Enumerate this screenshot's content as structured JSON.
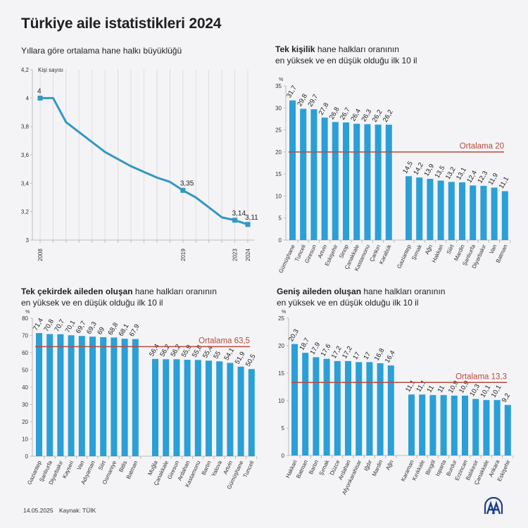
{
  "page": {
    "title": "Türkiye aile istatistikleri 2024",
    "footer_date": "14.05.2025",
    "footer_source": "Kaynak: TÜİK",
    "logo": "aa-logo-icon",
    "colors": {
      "bar": "#2a9fd8",
      "line": "#3497c4",
      "average": "#b84a3f",
      "background": "#f4f4f6"
    }
  },
  "chart_data": [
    {
      "type": "line",
      "title": "Yıllara göre ortalama hane halkı büyüklüğü",
      "ylabel": "Kişi sayısı",
      "xlabel": "",
      "x": [
        2008,
        2009,
        2010,
        2011,
        2012,
        2013,
        2014,
        2015,
        2016,
        2017,
        2018,
        2019,
        2020,
        2021,
        2022,
        2023,
        2024
      ],
      "values": [
        4.0,
        4.0,
        3.83,
        3.76,
        3.69,
        3.62,
        3.57,
        3.52,
        3.48,
        3.44,
        3.41,
        3.35,
        3.3,
        3.23,
        3.16,
        3.14,
        3.11
      ],
      "ylim": [
        3,
        4.2
      ],
      "yticks": [
        "3",
        "3,2",
        "3,4",
        "3,6",
        "3,8",
        "4",
        "4,2"
      ],
      "xtick_labels": [
        "2008",
        "2019",
        "2023",
        "2024"
      ],
      "data_labels": [
        {
          "year": 2008,
          "label": "4"
        },
        {
          "year": 2019,
          "label": "3,35"
        },
        {
          "year": 2023,
          "label": "3,14"
        },
        {
          "year": 2024,
          "label": "3,11"
        }
      ],
      "grid": "vertical"
    },
    {
      "type": "bar",
      "title_bold": "Tek kişilik",
      "title_rest": " hane halkları oranının",
      "title_line2": "en yüksek ve en düşük olduğu ilk 10 il",
      "ylabel": "%",
      "ylim": [
        0,
        35
      ],
      "yticks": [
        "0",
        "5",
        "10",
        "15",
        "20",
        "25",
        "30",
        "35"
      ],
      "average": {
        "value": 20,
        "label": "Ortalama 20"
      },
      "groups": [
        {
          "name": "highest",
          "categories": [
            "Gümüşhane",
            "Tunceli",
            "Giresun",
            "Artvin",
            "Eskişehir",
            "Sinop",
            "Çanakkale",
            "Kastamonu",
            "Çankırı",
            "Karabük"
          ],
          "values": [
            31.7,
            29.8,
            29.7,
            27.8,
            26.8,
            26.7,
            26.4,
            26.3,
            26.2,
            26.2
          ],
          "labels": [
            "31,7",
            "29,8",
            "29,7",
            "27,8",
            "26,8",
            "26,7",
            "26,4",
            "26,3",
            "26,2",
            "26,2"
          ]
        },
        {
          "name": "lowest",
          "categories": [
            "Gaziantep",
            "Şırnak",
            "Ağrı",
            "Hakkari",
            "Siirt",
            "Mardin",
            "Şanlıurfa",
            "Diyarbakır",
            "Van",
            "Batman"
          ],
          "values": [
            14.5,
            14.2,
            13.9,
            13.5,
            13.2,
            13.1,
            12.4,
            12.3,
            11.9,
            11.1
          ],
          "labels": [
            "14,5",
            "14,2",
            "13,9",
            "13,5",
            "13,2",
            "13,1",
            "12,4",
            "12,3",
            "11,9",
            "11,1"
          ]
        }
      ]
    },
    {
      "type": "bar",
      "title_bold": "Tek çekirdek aileden oluşan",
      "title_rest": " hane halkları oranının",
      "title_line2": "en yüksek ve en düşük olduğu ilk 10 il",
      "ylabel": "%",
      "ylim": [
        0,
        80
      ],
      "yticks": [
        "0",
        "10",
        "20",
        "30",
        "40",
        "50",
        "60",
        "70",
        "80"
      ],
      "average": {
        "value": 63.5,
        "label": "Ortalama 63,5"
      },
      "groups": [
        {
          "name": "highest",
          "categories": [
            "Gaziantep",
            "Şanlıurfa",
            "Diyarbakır",
            "Kayseri",
            "Van",
            "Adıyaman",
            "Siirt",
            "Osmaniye",
            "Bitlis",
            "Batman"
          ],
          "values": [
            71.4,
            70.8,
            70.7,
            70.1,
            69.7,
            69.3,
            69,
            68.8,
            68.1,
            67.9
          ],
          "labels": [
            "71,4",
            "70,8",
            "70,7",
            "70,1",
            "69,7",
            "69,3",
            "69",
            "68,8",
            "68,1",
            "67,9"
          ]
        },
        {
          "name": "lowest",
          "categories": [
            "Muğla",
            "Çanakkale",
            "Giresun",
            "Ardahan",
            "Kastamonu",
            "Bartın",
            "Yalova",
            "Artvin",
            "Gümüşhane",
            "Tunceli"
          ],
          "values": [
            56.4,
            56.2,
            56.2,
            55.9,
            55.8,
            55.4,
            55,
            54.1,
            51.9,
            50.5
          ],
          "labels": [
            "56,4",
            "56,2",
            "56,2",
            "55,9",
            "55,8",
            "55,4",
            "55",
            "54,1",
            "51,9",
            "50,5"
          ]
        }
      ]
    },
    {
      "type": "bar",
      "title_bold": "Geniş aileden oluşan",
      "title_rest": " hane halkları oranının",
      "title_line2": "en yüksek ve en düşük olduğu ilk 10 il",
      "ylabel": "%",
      "ylim": [
        0,
        25
      ],
      "yticks": [
        "0",
        "5",
        "10",
        "15",
        "20",
        "25"
      ],
      "average": {
        "value": 13.3,
        "label": "Ortalama 13,3"
      },
      "groups": [
        {
          "name": "highest",
          "categories": [
            "Hakkari",
            "Batman",
            "Bartın",
            "Şırnak",
            "Düzce",
            "Ardahan",
            "Afyonkarahisar",
            "Iğdır",
            "Mardin",
            "Ağrı"
          ],
          "values": [
            20.3,
            18.7,
            17.9,
            17.6,
            17.2,
            17.2,
            17,
            17,
            16.8,
            16.4
          ],
          "labels": [
            "20,3",
            "18,7",
            "17,9",
            "17,6",
            "17,2",
            "17,2",
            "17",
            "17",
            "16,8",
            "16,4"
          ]
        },
        {
          "name": "lowest",
          "categories": [
            "Karaman",
            "Kırıkkale",
            "Bingöl",
            "Isparta",
            "Burdur",
            "Erzincan",
            "Balıkesir",
            "Çanakkale",
            "Ankara",
            "Eskişehir"
          ],
          "values": [
            11.1,
            11.1,
            11,
            11,
            10.9,
            10.9,
            10.3,
            10.1,
            10.1,
            9.2
          ],
          "labels": [
            "11,1",
            "11,1",
            "11",
            "11",
            "10,9",
            "10,9",
            "10,3",
            "10,1",
            "10,1",
            "9,2"
          ]
        }
      ]
    }
  ]
}
